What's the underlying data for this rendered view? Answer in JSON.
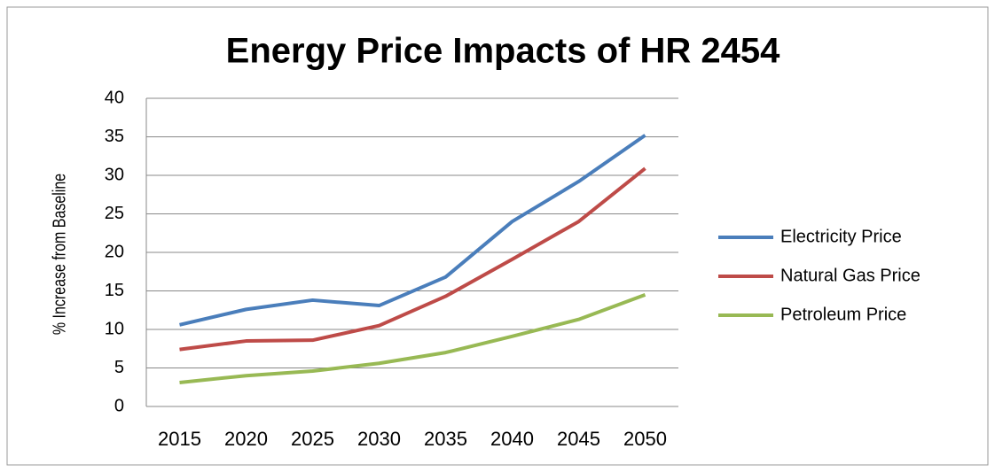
{
  "chart_data": {
    "type": "line",
    "title": "Energy Price Impacts of HR 2454",
    "y_label": "% Increase from Baseline",
    "categories": [
      "2015",
      "2020",
      "2025",
      "2030",
      "2035",
      "2040",
      "2045",
      "2050"
    ],
    "series": [
      {
        "name": "Electricity Price",
        "color": "#4a7ebb",
        "values": [
          10.6,
          12.6,
          13.8,
          13.1,
          16.8,
          24,
          29.2,
          35.2
        ]
      },
      {
        "name": "Natural Gas Price",
        "color": "#be4b48",
        "values": [
          7.4,
          8.5,
          8.6,
          10.5,
          14.3,
          19.1,
          24,
          30.9
        ]
      },
      {
        "name": "Petroleum Price",
        "color": "#98b954",
        "values": [
          3.1,
          4,
          4.6,
          5.6,
          7,
          9.1,
          11.3,
          14.5
        ]
      }
    ],
    "ylim": [
      0,
      40
    ],
    "yticks": [
      0,
      5,
      10,
      15,
      20,
      25,
      30,
      35,
      40
    ],
    "grid": true,
    "legend": "right"
  }
}
